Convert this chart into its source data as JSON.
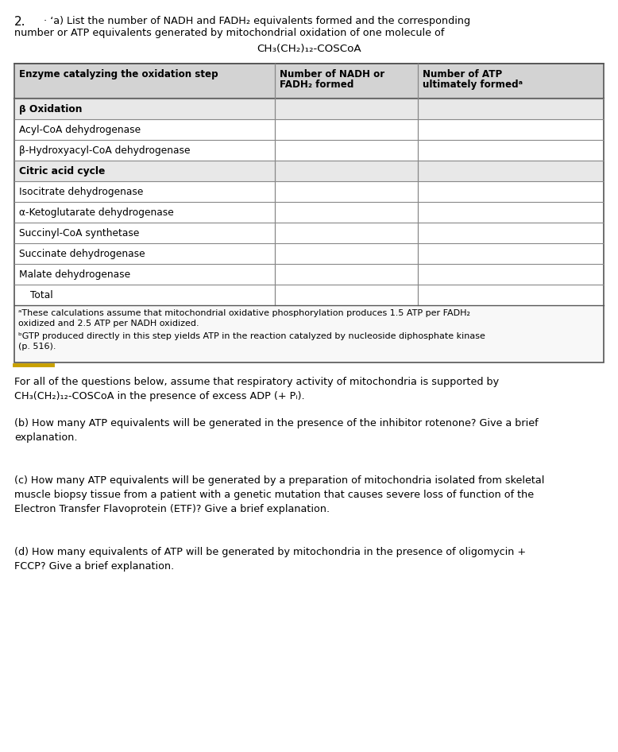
{
  "question_number": "2.",
  "line1": "· ʻa) List the number of NADH and FADH₂ equivalents formed and the corresponding",
  "line2": "number or ATP equivalents generated by mitochondrial oxidation of one molecule of",
  "formula": "CH₃(CH₂)₁₂-COSCoA",
  "col0_header_line1": "Enzyme catalyzing the oxidation step",
  "col1_header_line1": "Number of NADH or",
  "col1_header_line2": "FADH₂ formed",
  "col2_header_line1": "Number of ATP",
  "col2_header_line2": "ultimately formedᵃ",
  "table_rows": [
    {
      "label": "β Oxidation",
      "bold": true,
      "indent": false
    },
    {
      "label": "Acyl-CoA dehydrogenase",
      "bold": false,
      "indent": false
    },
    {
      "label": "β-Hydroxyacyl-CoA dehydrogenase",
      "bold": false,
      "indent": false
    },
    {
      "label": "Citric acid cycle",
      "bold": true,
      "indent": false
    },
    {
      "label": "Isocitrate dehydrogenase",
      "bold": false,
      "indent": false
    },
    {
      "label": "α-Ketoglutarate dehydrogenase",
      "bold": false,
      "indent": false
    },
    {
      "label": "Succinyl-CoA synthetase",
      "bold": false,
      "indent": false
    },
    {
      "label": "Succinate dehydrogenase",
      "bold": false,
      "indent": false
    },
    {
      "label": "Malate dehydrogenase",
      "bold": false,
      "indent": false
    },
    {
      "label": "Total",
      "bold": false,
      "indent": true
    }
  ],
  "footnote_a": "ᵃThese calculations assume that mitochondrial oxidative phosphorylation produces 1.5 ATP per FADH₂\noxidized and 2.5 ATP per NADH oxidized.",
  "footnote_b": "ᵇGTP produced directly in this step yields ATP in the reaction catalyzed by nucleoside diphosphate kinase\n(p. 516).",
  "intro_below_table": "For all of the questions below, assume that respiratory activity of mitochondria is supported by\nCH₃(CH₂)₁₂-COSCoA in the presence of excess ADP (+ Pᵢ).",
  "question_b": "(b) How many ATP equivalents will be generated in the presence of the inhibitor rotenone? Give a brief\nexplanation.",
  "question_c": "(c) How many ATP equivalents will be generated by a preparation of mitochondria isolated from skeletal\nmuscle biopsy tissue from a patient with a genetic mutation that causes severe loss of function of the\nElectron Transfer Flavoprotein (ETF)? Give a brief explanation.",
  "question_d": "(d) How many equivalents of ATP will be generated by mitochondria in the presence of oligomycin +\nFCCP? Give a brief explanation.",
  "bg_color": "#ffffff",
  "table_header_bg": "#d3d3d3",
  "table_row_bold_bg": "#e8e8e8",
  "table_border_color": "#555555",
  "table_line_color": "#888888",
  "text_color": "#000000",
  "yellow_color": "#c8a000",
  "fs_qnum": 11,
  "fs_body": 9.2,
  "fs_table": 8.8,
  "fs_footnote": 8.0
}
